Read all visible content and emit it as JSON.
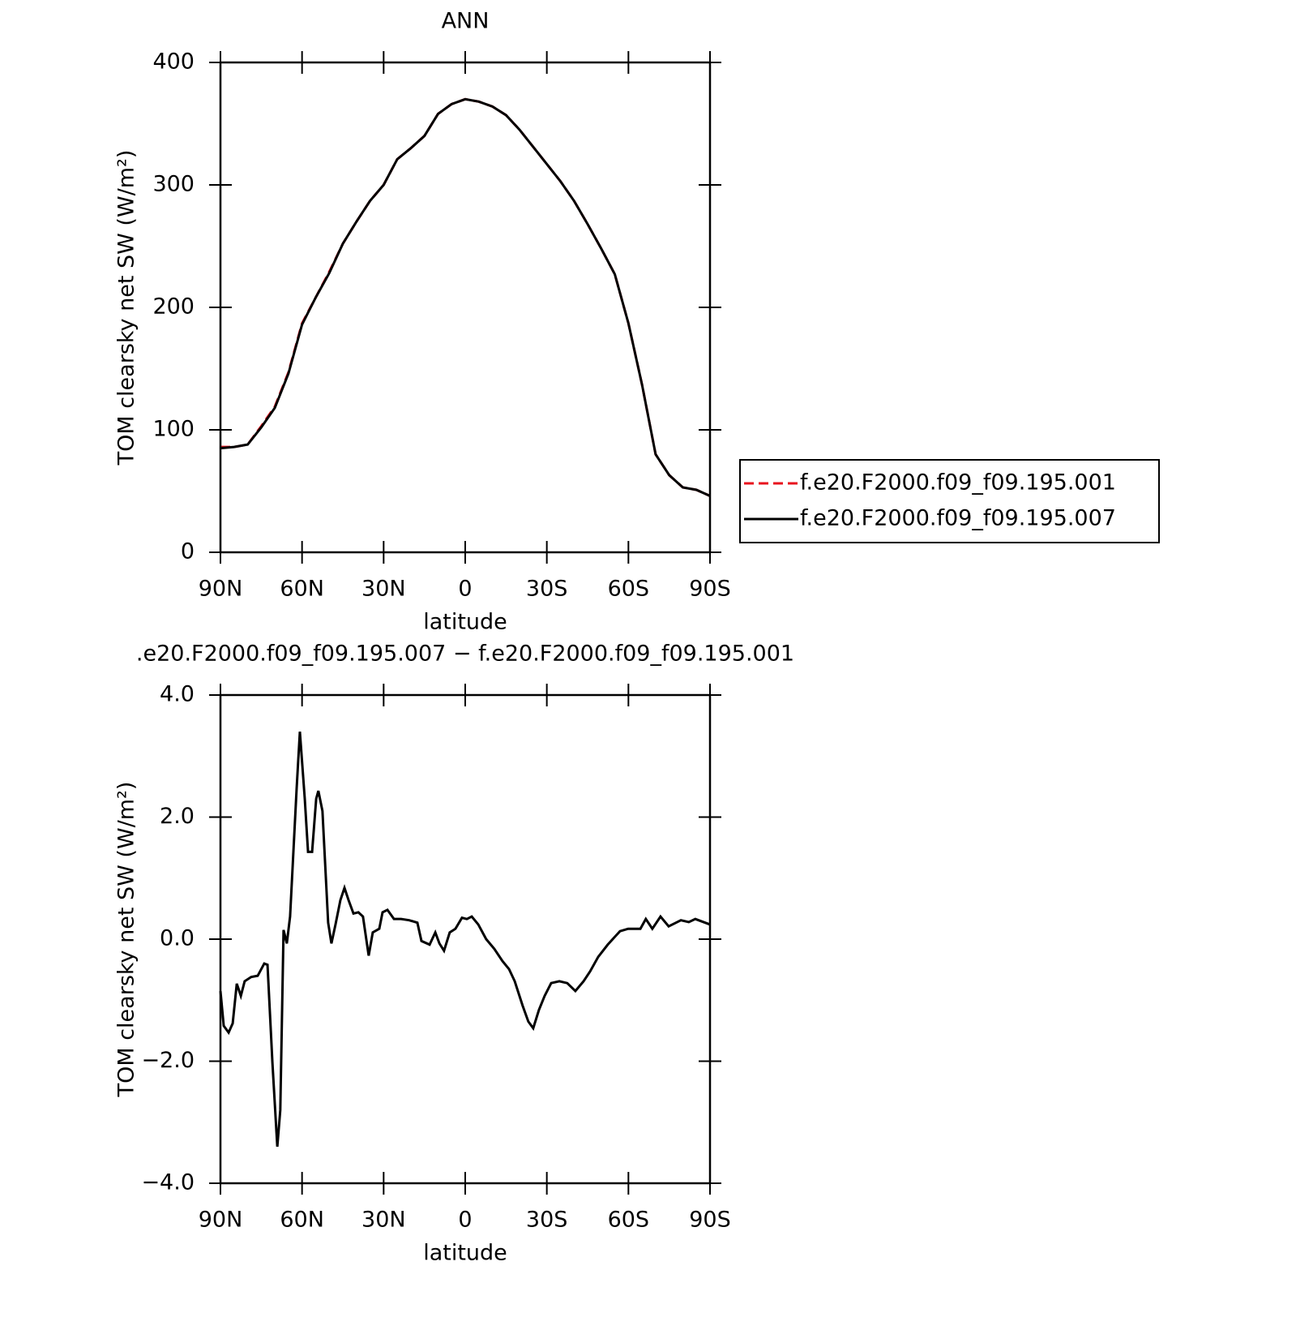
{
  "chart_data": [
    {
      "type": "line",
      "title": "ANN",
      "xlabel": "latitude",
      "ylabel": "TOM clearsky net SW (W/m²)",
      "x": [
        90,
        85,
        80,
        75,
        70,
        65,
        60,
        55,
        50,
        45,
        40,
        35,
        30,
        25,
        20,
        15,
        10,
        5,
        0,
        -5,
        -10,
        -15,
        -20,
        -25,
        -30,
        -35,
        -40,
        -45,
        -50,
        -55,
        -60,
        -65,
        -70,
        -75,
        -80,
        -85,
        -90
      ],
      "series": [
        {
          "name": "f.e20.F2000.f09_f09.195.001",
          "color": "#e8141e",
          "dash": true,
          "values": [
            86,
            86,
            88,
            103,
            119,
            147,
            187,
            208,
            229,
            252,
            270,
            287,
            300,
            321,
            330,
            340,
            358,
            366,
            370,
            368,
            364,
            357,
            345,
            331,
            317,
            303,
            287,
            268,
            248,
            227,
            187,
            137,
            80,
            63,
            53,
            51,
            46
          ]
        },
        {
          "name": "f.e20.F2000.f09_f09.195.007",
          "color": "#000000",
          "dash": false,
          "values": [
            85,
            86,
            88,
            102,
            118,
            146,
            186,
            208,
            228,
            252,
            270,
            287,
            300,
            321,
            330,
            340,
            358,
            366,
            370,
            368,
            364,
            357,
            345,
            331,
            317,
            303,
            287,
            268,
            248,
            227,
            187,
            137,
            80,
            63,
            53,
            51,
            46
          ]
        }
      ],
      "xlim": [
        90,
        -90
      ],
      "xticks": [
        {
          "value": 90,
          "label": "90N"
        },
        {
          "value": 60,
          "label": "60N"
        },
        {
          "value": 30,
          "label": "30N"
        },
        0,
        {
          "value": -30,
          "label": "30S"
        },
        {
          "value": -60,
          "label": "60S"
        },
        {
          "value": -90,
          "label": "90S"
        }
      ],
      "ylim": [
        0,
        400
      ],
      "yticks": [
        0,
        100,
        200,
        300,
        400
      ],
      "legend": "right"
    },
    {
      "type": "line",
      "title": ".e20.F2000.f09_f09.195.007 − f.e20.F2000.f09_f09.195.001",
      "xlabel": "latitude",
      "ylabel": "TOM clearsky net SW (W/m²)",
      "x": [
        90,
        88.8,
        87.0,
        85.5,
        84.0,
        82.5,
        81.1,
        78.7,
        76.3,
        73.9,
        72.7,
        70.9,
        69.1,
        68.0,
        66.8,
        65.6,
        64.4,
        62.0,
        60.8,
        59.0,
        57.8,
        56.3,
        54.8,
        54.0,
        52.5,
        50.4,
        49.2,
        47.7,
        45.9,
        44.4,
        42.9,
        41.1,
        39.3,
        37.6,
        35.5,
        34.0,
        31.6,
        30.4,
        28.6,
        26.2,
        23.6,
        20.6,
        17.6,
        16.1,
        13.1,
        11.0,
        9.5,
        7.8,
        5.7,
        3.6,
        1.2,
        -0.6,
        -2.4,
        -4.8,
        -7.7,
        -10.7,
        -13.7,
        -16.1,
        -18.2,
        -21.1,
        -23.2,
        -25.0,
        -27.1,
        -29.2,
        -31.6,
        -34.6,
        -37.5,
        -40.5,
        -43.5,
        -45.9,
        -48.9,
        -52.4,
        -56.9,
        -59.9,
        -64.4,
        -66.4,
        -68.8,
        -71.8,
        -74.8,
        -79.3,
        -82.2,
        -84.6,
        -90
      ],
      "series": [
        {
          "name": "difference",
          "color": "#000000",
          "dash": false,
          "values": [
            -0.85,
            -1.42,
            -1.53,
            -1.38,
            -0.73,
            -0.93,
            -0.69,
            -0.62,
            -0.6,
            -0.4,
            -0.42,
            -2.02,
            -3.4,
            -2.8,
            0.15,
            -0.07,
            0.37,
            2.46,
            3.4,
            2.3,
            1.43,
            1.43,
            2.3,
            2.43,
            2.1,
            0.27,
            -0.07,
            0.24,
            0.64,
            0.84,
            0.64,
            0.42,
            0.44,
            0.37,
            -0.27,
            0.11,
            0.17,
            0.44,
            0.48,
            0.33,
            0.33,
            0.31,
            0.27,
            -0.03,
            -0.09,
            0.11,
            -0.07,
            -0.19,
            0.11,
            0.17,
            0.35,
            0.33,
            0.37,
            0.24,
            0,
            -0.16,
            -0.36,
            -0.49,
            -0.69,
            -1.09,
            -1.35,
            -1.46,
            -1.16,
            -0.93,
            -0.72,
            -0.69,
            -0.72,
            -0.85,
            -0.69,
            -0.53,
            -0.29,
            -0.09,
            0.13,
            0.17,
            0.17,
            0.33,
            0.17,
            0.37,
            0.21,
            0.31,
            0.28,
            0.33,
            0.24
          ]
        }
      ],
      "xlim": [
        90,
        -90
      ],
      "xticks": [
        {
          "value": 90,
          "label": "90N"
        },
        {
          "value": 60,
          "label": "60N"
        },
        {
          "value": 30,
          "label": "30N"
        },
        0,
        {
          "value": -30,
          "label": "30S"
        },
        {
          "value": -60,
          "label": "60S"
        },
        {
          "value": -90,
          "label": "90S"
        }
      ],
      "ylim": [
        -4,
        4
      ],
      "yticks": [
        {
          "value": -4,
          "label": "−4.0"
        },
        {
          "value": -2,
          "label": "−2.0"
        },
        {
          "value": 0,
          "label": "0.0"
        },
        {
          "value": 2,
          "label": "2.0"
        },
        {
          "value": 4,
          "label": "4.0"
        }
      ]
    }
  ]
}
